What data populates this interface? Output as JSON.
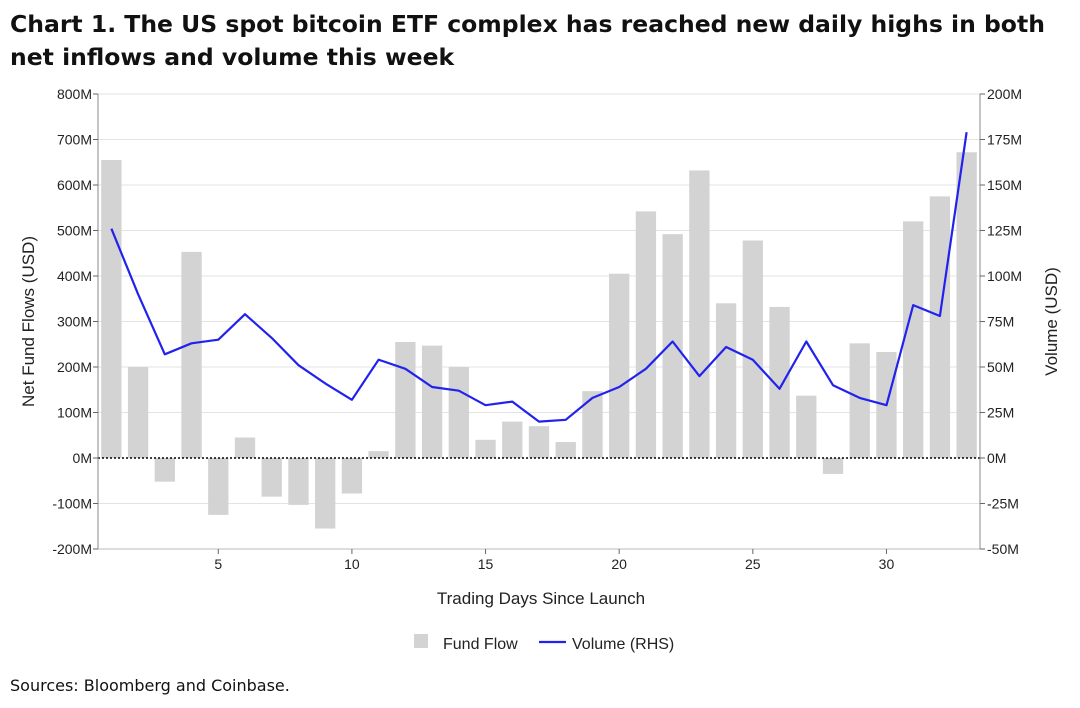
{
  "title": "Chart 1. The US spot bitcoin ETF complex has reached new daily highs in both net inflows and volume this week",
  "source": "Sources: Bloomberg and Coinbase.",
  "chart_data": {
    "type": "bar+line",
    "xlabel": "Trading Days Since Launch",
    "ylabel": "Net Fund Flows (USD)",
    "y2label": "Volume (USD)",
    "ylim": [
      -200,
      800
    ],
    "y2lim": [
      -50,
      200
    ],
    "xlim": [
      0.5,
      33.5
    ],
    "x": [
      1,
      2,
      3,
      4,
      5,
      6,
      7,
      8,
      9,
      10,
      11,
      12,
      13,
      14,
      15,
      16,
      17,
      18,
      19,
      20,
      21,
      22,
      23,
      24,
      25,
      26,
      27,
      28,
      29,
      30,
      31,
      32,
      33
    ],
    "xticks": [
      {
        "value": 5,
        "label": "5"
      },
      {
        "value": 10,
        "label": "10"
      },
      {
        "value": 15,
        "label": "15"
      },
      {
        "value": 20,
        "label": "20"
      },
      {
        "value": 25,
        "label": "25"
      },
      {
        "value": 30,
        "label": "30"
      }
    ],
    "yticks": [
      {
        "value": 800,
        "label": "800M"
      },
      {
        "value": 700,
        "label": "700M"
      },
      {
        "value": 600,
        "label": "600M"
      },
      {
        "value": 500,
        "label": "500M"
      },
      {
        "value": 400,
        "label": "400M"
      },
      {
        "value": 300,
        "label": "300M"
      },
      {
        "value": 200,
        "label": "200M"
      },
      {
        "value": 100,
        "label": "100M"
      },
      {
        "value": 0,
        "label": "0M"
      },
      {
        "value": -100,
        "label": "-100M"
      },
      {
        "value": -200,
        "label": "-200M"
      }
    ],
    "y2ticks": [
      {
        "value": 200,
        "label": "200M"
      },
      {
        "value": 175,
        "label": "175M"
      },
      {
        "value": 150,
        "label": "150M"
      },
      {
        "value": 125,
        "label": "125M"
      },
      {
        "value": 100,
        "label": "100M"
      },
      {
        "value": 75,
        "label": "75M"
      },
      {
        "value": 50,
        "label": "50M"
      },
      {
        "value": 25,
        "label": "25M"
      },
      {
        "value": 0,
        "label": "0M"
      },
      {
        "value": -25,
        "label": "-25M"
      },
      {
        "value": -50,
        "label": "-50M"
      }
    ],
    "series": [
      {
        "name": "Fund Flow",
        "type": "bar",
        "axis": "left",
        "color": "#d3d3d3",
        "values": [
          655,
          200,
          -52,
          453,
          -125,
          45,
          -85,
          -103,
          -155,
          -78,
          15,
          255,
          247,
          200,
          40,
          80,
          70,
          35,
          147,
          405,
          542,
          492,
          632,
          340,
          478,
          332,
          137,
          -35,
          252,
          233,
          520,
          575,
          672
        ]
      },
      {
        "name": "Volume (RHS)",
        "type": "line",
        "axis": "right",
        "color": "#2222ee",
        "values": [
          126,
          90,
          57,
          63,
          65,
          79,
          66,
          51,
          41,
          32,
          54,
          49,
          39,
          37,
          29,
          31,
          20,
          21,
          33,
          39,
          49,
          64,
          45,
          61,
          54,
          38,
          64,
          40,
          33,
          29,
          84,
          78,
          179
        ]
      }
    ],
    "legend": {
      "position": "bottom-center",
      "items": [
        {
          "label": "Fund Flow",
          "color": "#d3d3d3",
          "shape": "square"
        },
        {
          "label": "Volume (RHS)",
          "color": "#2222ee",
          "shape": "line"
        }
      ]
    }
  }
}
